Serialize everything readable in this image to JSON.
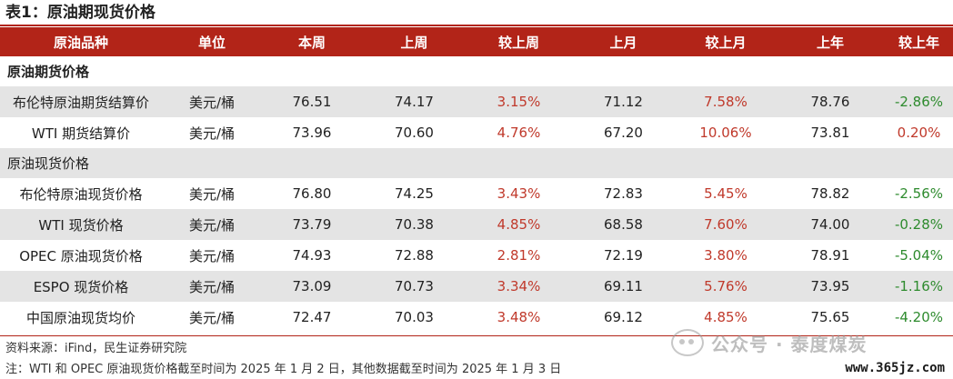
{
  "title": "表1：原油期现货价格",
  "headers": [
    "原油品种",
    "单位",
    "本周",
    "上周",
    "较上周",
    "上月",
    "较上月",
    "上年",
    "较上年"
  ],
  "sections": [
    {
      "label": "原油期货价格",
      "rows": [
        {
          "name": "布伦特原油期货结算价",
          "unit": "美元/桶",
          "this_week": "76.51",
          "last_week": "74.17",
          "wow": "3.15%",
          "last_month": "71.12",
          "mom": "7.58%",
          "last_year": "78.76",
          "yoy": "-2.86%"
        },
        {
          "name": "WTI 期货结算价",
          "unit": "美元/桶",
          "this_week": "73.96",
          "last_week": "70.60",
          "wow": "4.76%",
          "last_month": "67.20",
          "mom": "10.06%",
          "last_year": "73.81",
          "yoy": "0.20%"
        }
      ]
    },
    {
      "label": "原油现货价格",
      "rows": [
        {
          "name": "布伦特原油现货价格",
          "unit": "美元/桶",
          "this_week": "76.80",
          "last_week": "74.25",
          "wow": "3.43%",
          "last_month": "72.83",
          "mom": "5.45%",
          "last_year": "78.82",
          "yoy": "-2.56%"
        },
        {
          "name": "WTI 现货价格",
          "unit": "美元/桶",
          "this_week": "73.79",
          "last_week": "70.38",
          "wow": "4.85%",
          "last_month": "68.58",
          "mom": "7.60%",
          "last_year": "74.00",
          "yoy": "-0.28%"
        },
        {
          "name": "OPEC 原油现货价格",
          "unit": "美元/桶",
          "this_week": "74.93",
          "last_week": "72.88",
          "wow": "2.81%",
          "last_month": "72.19",
          "mom": "3.80%",
          "last_year": "78.91",
          "yoy": "-5.04%"
        },
        {
          "name": "ESPO 现货价格",
          "unit": "美元/桶",
          "this_week": "73.09",
          "last_week": "70.73",
          "wow": "3.34%",
          "last_month": "69.11",
          "mom": "5.76%",
          "last_year": "73.95",
          "yoy": "-1.16%"
        },
        {
          "name": "中国原油现货均价",
          "unit": "美元/桶",
          "this_week": "72.47",
          "last_week": "70.03",
          "wow": "3.48%",
          "last_month": "69.12",
          "mom": "4.85%",
          "last_year": "75.65",
          "yoy": "-4.20%"
        }
      ]
    }
  ],
  "notes": {
    "source": "资料来源：iFind，民生证券研究院",
    "footnote": "注：WTI 和 OPEC 原油现货价格截至时间为 2025 年 1 月 2 日，其他数据截至时间为 2025 年 1 月 3 日"
  },
  "watermark": {
    "text": "公众号 · 泰度煤炭",
    "site": "www.365jz.com"
  },
  "colors": {
    "header_bg": "#b22418",
    "positive": "#c0392b",
    "negative": "#2e8b2e",
    "shade": "#e4e4e4"
  }
}
